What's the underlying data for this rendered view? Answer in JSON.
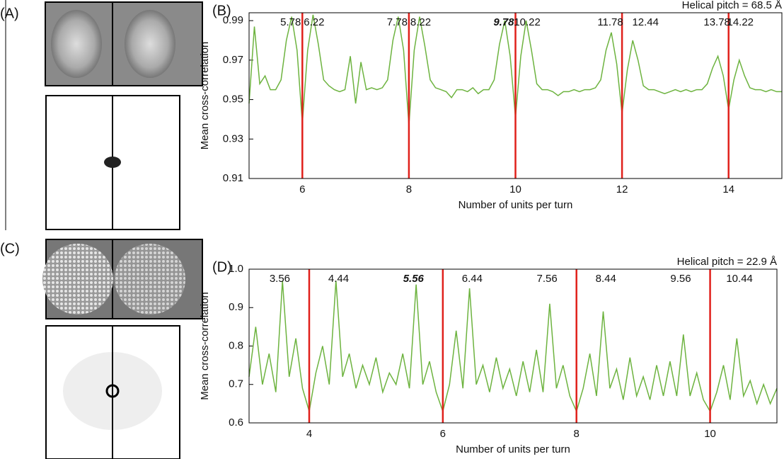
{
  "figure_labels": [
    "(A)",
    "(C)"
  ],
  "chart_data": [
    {
      "type": "line",
      "panel_label": "(B)",
      "annotation": "Helical pitch = 68.5 Å",
      "xlabel": "Number of units per turn",
      "ylabel": "Mean cross-correlation",
      "xlim": [
        5,
        15
      ],
      "ylim": [
        0.91,
        0.994
      ],
      "xticks": [
        6,
        8,
        10,
        12,
        14
      ],
      "yticks": [
        0.91,
        0.93,
        0.95,
        0.97,
        0.99
      ],
      "vlines": [
        6,
        8,
        10,
        12,
        14
      ],
      "vline_color": "#e0201b",
      "peak_labels": [
        5.78,
        6.22,
        7.78,
        8.22,
        {
          "value": 9.78,
          "style": "bold-italic"
        },
        10.22,
        11.78,
        12.44,
        13.78,
        14.22
      ],
      "x": [
        5.0,
        5.1,
        5.2,
        5.3,
        5.4,
        5.5,
        5.6,
        5.7,
        5.8,
        5.9,
        6.0,
        6.1,
        6.2,
        6.3,
        6.4,
        6.5,
        6.6,
        6.7,
        6.8,
        6.9,
        7.0,
        7.1,
        7.2,
        7.3,
        7.4,
        7.5,
        7.6,
        7.7,
        7.8,
        7.9,
        8.0,
        8.1,
        8.2,
        8.3,
        8.4,
        8.5,
        8.6,
        8.7,
        8.8,
        8.9,
        9.0,
        9.1,
        9.2,
        9.3,
        9.4,
        9.5,
        9.6,
        9.7,
        9.8,
        9.9,
        10.0,
        10.1,
        10.2,
        10.3,
        10.4,
        10.5,
        10.6,
        10.7,
        10.8,
        10.9,
        11.0,
        11.1,
        11.2,
        11.3,
        11.4,
        11.5,
        11.6,
        11.7,
        11.8,
        11.9,
        12.0,
        12.1,
        12.2,
        12.3,
        12.4,
        12.5,
        12.6,
        12.7,
        12.8,
        12.9,
        13.0,
        13.1,
        13.2,
        13.3,
        13.4,
        13.5,
        13.6,
        13.7,
        13.8,
        13.9,
        14.0,
        14.1,
        14.2,
        14.3,
        14.4,
        14.5,
        14.6,
        14.7,
        14.8,
        14.9,
        15.0
      ],
      "series": [
        {
          "color": "#6db33f",
          "values": [
            0.948,
            0.987,
            0.958,
            0.962,
            0.955,
            0.955,
            0.96,
            0.98,
            0.992,
            0.975,
            0.938,
            0.975,
            0.993,
            0.978,
            0.96,
            0.957,
            0.955,
            0.954,
            0.955,
            0.972,
            0.948,
            0.969,
            0.955,
            0.956,
            0.955,
            0.956,
            0.96,
            0.98,
            0.992,
            0.975,
            0.937,
            0.975,
            0.992,
            0.977,
            0.96,
            0.956,
            0.955,
            0.954,
            0.951,
            0.955,
            0.955,
            0.954,
            0.956,
            0.953,
            0.955,
            0.955,
            0.96,
            0.978,
            0.99,
            0.972,
            0.941,
            0.972,
            0.99,
            0.975,
            0.958,
            0.955,
            0.955,
            0.954,
            0.952,
            0.954,
            0.954,
            0.955,
            0.954,
            0.955,
            0.955,
            0.956,
            0.96,
            0.975,
            0.984,
            0.968,
            0.943,
            0.965,
            0.98,
            0.97,
            0.957,
            0.955,
            0.955,
            0.954,
            0.953,
            0.954,
            0.955,
            0.954,
            0.955,
            0.954,
            0.955,
            0.955,
            0.958,
            0.966,
            0.972,
            0.962,
            0.945,
            0.96,
            0.97,
            0.962,
            0.956,
            0.955,
            0.955,
            0.954,
            0.955,
            0.954,
            0.954
          ]
        }
      ]
    },
    {
      "type": "line",
      "panel_label": "(D)",
      "annotation": "Helical pitch = 22.9 Å",
      "xlabel": "Number of units per turn",
      "ylabel": "Mean cross-correlation",
      "xlim": [
        3.1,
        11
      ],
      "ylim": [
        0.6,
        1.0
      ],
      "xticks": [
        4,
        6,
        8,
        10
      ],
      "yticks": [
        0.6,
        0.7,
        0.8,
        0.9,
        {
          "value": 1,
          "label": "1.0"
        }
      ],
      "vlines": [
        4,
        6,
        8,
        10
      ],
      "vline_color": "#e0201b",
      "peak_labels": [
        3.56,
        4.44,
        {
          "value": 5.56,
          "style": "bold-italic"
        },
        6.44,
        7.56,
        8.44,
        9.56,
        10.44
      ],
      "x": [
        3.1,
        3.2,
        3.3,
        3.4,
        3.5,
        3.6,
        3.7,
        3.8,
        3.9,
        4.0,
        4.1,
        4.2,
        4.3,
        4.4,
        4.5,
        4.6,
        4.7,
        4.8,
        4.9,
        5.0,
        5.1,
        5.2,
        5.3,
        5.4,
        5.5,
        5.6,
        5.7,
        5.8,
        5.9,
        6.0,
        6.1,
        6.2,
        6.3,
        6.4,
        6.5,
        6.6,
        6.7,
        6.8,
        6.9,
        7.0,
        7.1,
        7.2,
        7.3,
        7.4,
        7.5,
        7.6,
        7.7,
        7.8,
        7.9,
        8.0,
        8.1,
        8.2,
        8.3,
        8.4,
        8.5,
        8.6,
        8.7,
        8.8,
        8.9,
        9.0,
        9.1,
        9.2,
        9.3,
        9.4,
        9.5,
        9.6,
        9.7,
        9.8,
        9.9,
        10.0,
        10.1,
        10.2,
        10.3,
        10.4,
        10.5,
        10.6,
        10.7,
        10.8,
        10.9,
        11.0
      ],
      "series": [
        {
          "color": "#6db33f",
          "values": [
            0.72,
            0.85,
            0.7,
            0.78,
            0.68,
            0.97,
            0.72,
            0.82,
            0.69,
            0.63,
            0.73,
            0.8,
            0.7,
            0.97,
            0.72,
            0.78,
            0.69,
            0.75,
            0.7,
            0.77,
            0.68,
            0.73,
            0.7,
            0.78,
            0.69,
            0.96,
            0.7,
            0.76,
            0.68,
            0.63,
            0.7,
            0.84,
            0.69,
            0.95,
            0.7,
            0.75,
            0.68,
            0.77,
            0.69,
            0.74,
            0.67,
            0.76,
            0.68,
            0.79,
            0.68,
            0.91,
            0.69,
            0.75,
            0.67,
            0.63,
            0.69,
            0.78,
            0.67,
            0.89,
            0.69,
            0.74,
            0.66,
            0.77,
            0.67,
            0.72,
            0.66,
            0.75,
            0.67,
            0.76,
            0.67,
            0.83,
            0.67,
            0.73,
            0.66,
            0.63,
            0.68,
            0.75,
            0.66,
            0.82,
            0.67,
            0.71,
            0.65,
            0.7,
            0.65,
            0.69
          ]
        }
      ]
    }
  ]
}
